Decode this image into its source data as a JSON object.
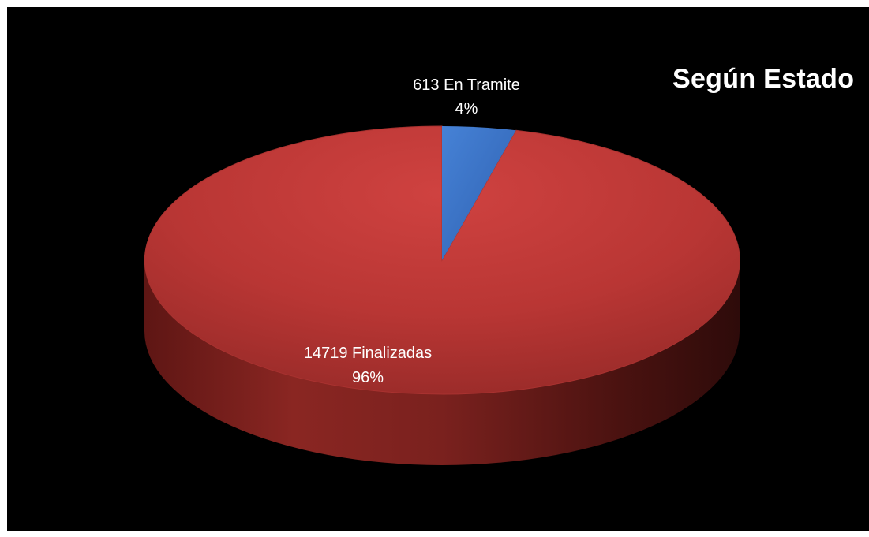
{
  "chart_data": {
    "type": "pie",
    "title": "Según Estado",
    "slices": [
      {
        "label": "En Tramite",
        "value": 613,
        "percent_label": "4%",
        "color": "#3b74c9"
      },
      {
        "label": "Finalizadas",
        "value": 14719,
        "percent_label": "96%",
        "color": "#c0393a"
      }
    ]
  },
  "data_labels": [
    {
      "count_text": "613 En Tramite",
      "percent_text": "4%"
    },
    {
      "count_text": "14719 Finalizadas",
      "percent_text": "96%"
    }
  ],
  "colors": {
    "background": "#000000",
    "title_text": "#ffffff",
    "label_text": "#ffffff"
  }
}
